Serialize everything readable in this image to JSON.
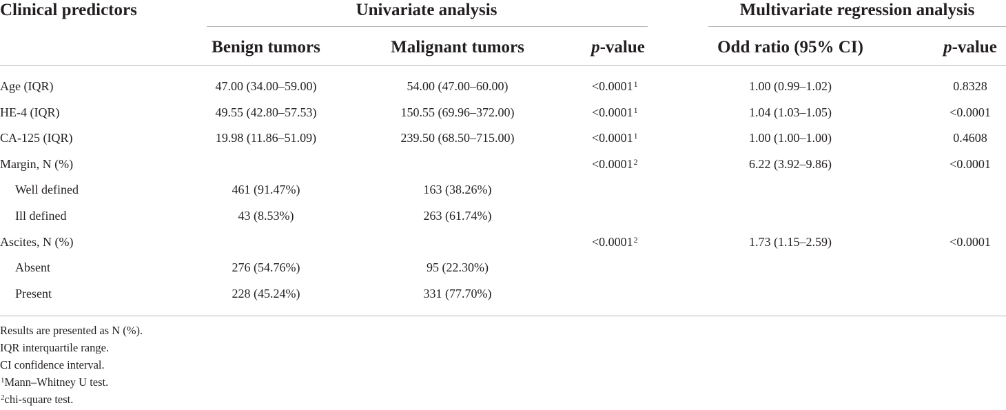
{
  "header": {
    "col_predictors": "Clinical predictors",
    "group_univariate": "Univariate analysis",
    "group_multivariate": "Multivariate regression analysis",
    "col_benign": "Benign tumors",
    "col_malignant": "Malignant tumors",
    "col_pvalue_italic": "p",
    "col_pvalue_rest": "-value",
    "col_odds": "Odd ratio (95% CI)",
    "col_pvalue2_italic": "p",
    "col_pvalue2_rest": "-value"
  },
  "rows": [
    {
      "label": "Age (IQR)",
      "benign": "47.00 (34.00–59.00)",
      "malignant": "54.00 (47.00–60.00)",
      "p": "<0.0001",
      "p_sup": "1",
      "or": "1.00 (0.99–1.02)",
      "p2": "0.8328"
    },
    {
      "label": "HE-4 (IQR)",
      "benign": "49.55 (42.80–57.53)",
      "malignant": "150.55 (69.96–372.00)",
      "p": "<0.0001",
      "p_sup": "1",
      "or": "1.04 (1.03–1.05)",
      "p2": "<0.0001"
    },
    {
      "label": "CA-125 (IQR)",
      "benign": "19.98 (11.86–51.09)",
      "malignant": "239.50 (68.50–715.00)",
      "p": "<0.0001",
      "p_sup": "1",
      "or": "1.00 (1.00–1.00)",
      "p2": "0.4608"
    },
    {
      "label": "Margin, N (%)",
      "benign": "",
      "malignant": "",
      "p": "<0.0001",
      "p_sup": "2",
      "or": "6.22 (3.92–9.86)",
      "p2": "<0.0001"
    },
    {
      "label": "Well defined",
      "benign": "461 (91.47%)",
      "malignant": "163 (38.26%)",
      "p": "",
      "p_sup": "",
      "or": "",
      "p2": ""
    },
    {
      "label": "Ill defined",
      "benign": "43 (8.53%)",
      "malignant": "263 (61.74%)",
      "p": "",
      "p_sup": "",
      "or": "",
      "p2": ""
    },
    {
      "label": "Ascites, N (%)",
      "benign": "",
      "malignant": "",
      "p": "<0.0001",
      "p_sup": "2",
      "or": "1.73 (1.15–2.59)",
      "p2": "<0.0001"
    },
    {
      "label": "Absent",
      "benign": "276 (54.76%)",
      "malignant": "95 (22.30%)",
      "p": "",
      "p_sup": "",
      "or": "",
      "p2": ""
    },
    {
      "label": "Present",
      "benign": "228 (45.24%)",
      "malignant": "331 (77.70%)",
      "p": "",
      "p_sup": "",
      "or": "",
      "p2": ""
    }
  ],
  "footnotes": {
    "line1": "Results are presented as N (%).",
    "line2": "IQR interquartile range.",
    "line3": "CI confidence interval.",
    "line4_sup": "1",
    "line4": "Mann–Whitney U test.",
    "line5_sup": "2",
    "line5": "chi-square test."
  }
}
